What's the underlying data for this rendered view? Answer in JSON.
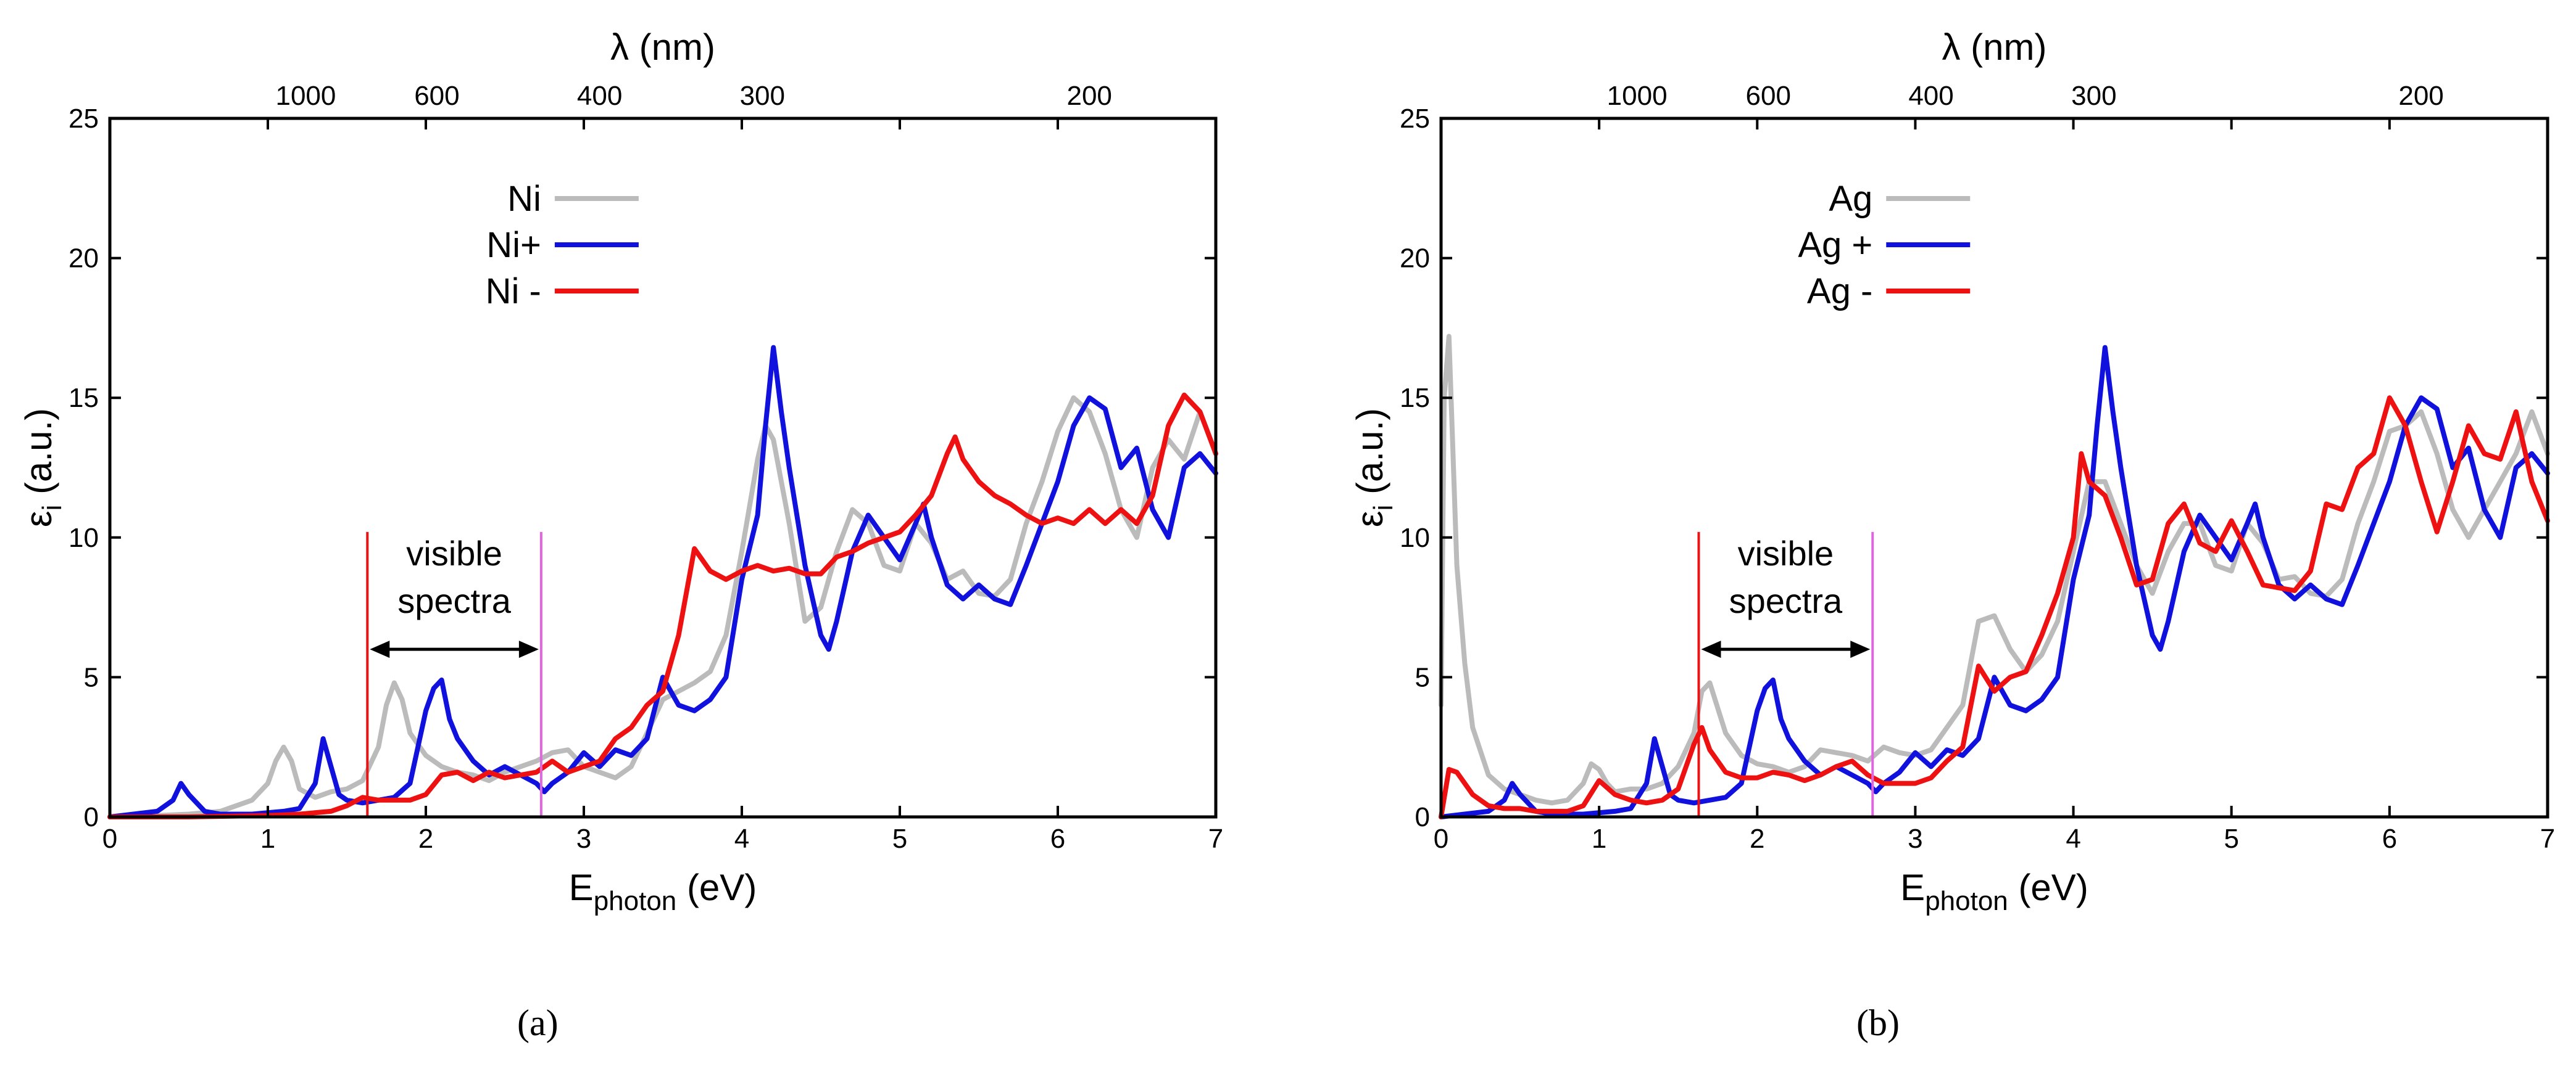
{
  "chart_data": [
    {
      "type": "line",
      "panel_label": "(a)",
      "xlabel": "E",
      "xlabel_sub": "photon",
      "xlabel_unit": " (eV)",
      "ylabel": "ε",
      "ylabel_sub": "i",
      "ylabel_unit": " (a.u.)",
      "top_axis_label": "λ (nm)",
      "xlim": [
        0,
        7
      ],
      "ylim": [
        0,
        25
      ],
      "x_ticks": [
        "0",
        "1",
        "2",
        "3",
        "4",
        "5",
        "6",
        "7"
      ],
      "y_ticks": [
        "0",
        "5",
        "10",
        "15",
        "20",
        "25"
      ],
      "top_ticks": [
        {
          "label": "1000",
          "ev": 1.24
        },
        {
          "label": "600",
          "ev": 2.07
        },
        {
          "label": "400",
          "ev": 3.1
        },
        {
          "label": "300",
          "ev": 4.13
        },
        {
          "label": "200",
          "ev": 6.2
        }
      ],
      "legend_position": "top-center",
      "visible_band": {
        "low_ev": 1.63,
        "high_ev": 2.73,
        "label_line1": "visible",
        "label_line2": "spectra",
        "arrow_y": 6.0,
        "line_top": 10.2,
        "low_color": "#ee1111",
        "high_color": "#e066e0"
      },
      "series": [
        {
          "name": "Ni",
          "color": "#bbbbbb",
          "x": [
            0,
            0.3,
            0.5,
            0.7,
            0.9,
            1.0,
            1.05,
            1.1,
            1.15,
            1.2,
            1.3,
            1.4,
            1.5,
            1.6,
            1.7,
            1.75,
            1.8,
            1.85,
            1.9,
            2.0,
            2.1,
            2.2,
            2.3,
            2.4,
            2.5,
            2.6,
            2.7,
            2.8,
            2.9,
            3.0,
            3.1,
            3.2,
            3.3,
            3.4,
            3.5,
            3.6,
            3.7,
            3.8,
            3.9,
            4.0,
            4.1,
            4.15,
            4.2,
            4.3,
            4.4,
            4.5,
            4.6,
            4.7,
            4.8,
            4.9,
            5.0,
            5.1,
            5.2,
            5.3,
            5.4,
            5.5,
            5.6,
            5.7,
            5.8,
            5.9,
            6.0,
            6.1,
            6.2,
            6.3,
            6.4,
            6.5,
            6.6,
            6.7,
            6.8,
            6.9,
            7.0
          ],
          "y": [
            0,
            0.05,
            0.1,
            0.2,
            0.6,
            1.2,
            2.0,
            2.5,
            2.0,
            1.0,
            0.7,
            0.9,
            1.0,
            1.3,
            2.5,
            4.0,
            4.8,
            4.2,
            3.0,
            2.2,
            1.8,
            1.6,
            1.5,
            1.3,
            1.6,
            1.8,
            2.0,
            2.3,
            2.4,
            1.8,
            1.6,
            1.4,
            1.8,
            3.0,
            4.2,
            4.5,
            4.8,
            5.2,
            6.5,
            9.5,
            12.8,
            14.0,
            13.5,
            10.5,
            7.0,
            7.5,
            9.5,
            11.0,
            10.5,
            9.0,
            8.8,
            10.5,
            9.8,
            8.5,
            8.8,
            8.0,
            7.9,
            8.5,
            10.5,
            12.0,
            13.8,
            15.0,
            14.5,
            13.0,
            11.0,
            10.0,
            12.5,
            13.5,
            12.8,
            14.5,
            13.0
          ]
        },
        {
          "name": "Ni+",
          "color": "#1111dd",
          "x": [
            0,
            0.3,
            0.4,
            0.45,
            0.5,
            0.6,
            0.7,
            0.9,
            1.1,
            1.2,
            1.3,
            1.35,
            1.4,
            1.45,
            1.5,
            1.6,
            1.7,
            1.8,
            1.9,
            1.95,
            2.0,
            2.05,
            2.1,
            2.15,
            2.2,
            2.3,
            2.4,
            2.5,
            2.6,
            2.7,
            2.75,
            2.8,
            2.9,
            3.0,
            3.1,
            3.2,
            3.3,
            3.4,
            3.5,
            3.6,
            3.7,
            3.8,
            3.9,
            4.0,
            4.1,
            4.15,
            4.2,
            4.25,
            4.3,
            4.4,
            4.5,
            4.55,
            4.6,
            4.7,
            4.8,
            4.9,
            5.0,
            5.1,
            5.15,
            5.2,
            5.3,
            5.4,
            5.5,
            5.6,
            5.7,
            5.8,
            5.9,
            6.0,
            6.1,
            6.2,
            6.3,
            6.4,
            6.5,
            6.6,
            6.7,
            6.8,
            6.9,
            7.0
          ],
          "y": [
            0,
            0.2,
            0.6,
            1.2,
            0.8,
            0.2,
            0.1,
            0.1,
            0.2,
            0.3,
            1.2,
            2.8,
            1.8,
            0.8,
            0.6,
            0.5,
            0.6,
            0.7,
            1.2,
            2.5,
            3.8,
            4.6,
            4.9,
            3.5,
            2.8,
            2.0,
            1.5,
            1.8,
            1.5,
            1.2,
            0.9,
            1.2,
            1.6,
            2.3,
            1.8,
            2.4,
            2.2,
            2.8,
            5.0,
            4.0,
            3.8,
            4.2,
            5.0,
            8.5,
            10.8,
            14.0,
            16.8,
            14.5,
            12.5,
            9.0,
            6.5,
            6.0,
            7.0,
            9.5,
            10.8,
            10.0,
            9.2,
            10.5,
            11.2,
            10.0,
            8.3,
            7.8,
            8.3,
            7.8,
            7.6,
            9.0,
            10.5,
            12.0,
            14.0,
            15.0,
            14.6,
            12.5,
            13.2,
            11.0,
            10.0,
            12.5,
            13.0,
            12.3
          ]
        },
        {
          "name": "Ni -",
          "color": "#ee1111",
          "x": [
            0,
            0.5,
            1.0,
            1.2,
            1.4,
            1.5,
            1.6,
            1.7,
            1.8,
            1.9,
            2.0,
            2.1,
            2.2,
            2.3,
            2.4,
            2.5,
            2.6,
            2.7,
            2.8,
            2.9,
            3.0,
            3.1,
            3.2,
            3.3,
            3.4,
            3.5,
            3.6,
            3.7,
            3.8,
            3.9,
            4.0,
            4.1,
            4.2,
            4.3,
            4.4,
            4.5,
            4.6,
            4.7,
            4.8,
            4.9,
            5.0,
            5.1,
            5.2,
            5.3,
            5.35,
            5.4,
            5.5,
            5.6,
            5.7,
            5.8,
            5.9,
            6.0,
            6.1,
            6.2,
            6.3,
            6.4,
            6.5,
            6.6,
            6.7,
            6.8,
            6.9,
            7.0
          ],
          "y": [
            0,
            0,
            0.05,
            0.1,
            0.2,
            0.4,
            0.7,
            0.6,
            0.6,
            0.6,
            0.8,
            1.5,
            1.6,
            1.3,
            1.6,
            1.4,
            1.5,
            1.6,
            2.0,
            1.6,
            1.8,
            2.0,
            2.8,
            3.2,
            4.0,
            4.5,
            6.5,
            9.6,
            8.8,
            8.5,
            8.8,
            9.0,
            8.8,
            8.9,
            8.7,
            8.7,
            9.3,
            9.5,
            9.8,
            10.0,
            10.2,
            10.8,
            11.5,
            13.0,
            13.6,
            12.8,
            12.0,
            11.5,
            11.2,
            10.8,
            10.5,
            10.7,
            10.5,
            11.0,
            10.5,
            11.0,
            10.5,
            11.5,
            14.0,
            15.1,
            14.5,
            13.0
          ]
        }
      ]
    },
    {
      "type": "line",
      "panel_label": "(b)",
      "xlabel": "E",
      "xlabel_sub": "photon",
      "xlabel_unit": " (eV)",
      "ylabel": "ε",
      "ylabel_sub": "i",
      "ylabel_unit": " (a.u.)",
      "top_axis_label": "λ (nm)",
      "xlim": [
        0,
        7
      ],
      "ylim": [
        0,
        25
      ],
      "x_ticks": [
        "0",
        "1",
        "2",
        "3",
        "4",
        "5",
        "6",
        "7"
      ],
      "y_ticks": [
        "0",
        "5",
        "10",
        "15",
        "20",
        "25"
      ],
      "top_ticks": [
        {
          "label": "1000",
          "ev": 1.24
        },
        {
          "label": "600",
          "ev": 2.07
        },
        {
          "label": "400",
          "ev": 3.1
        },
        {
          "label": "300",
          "ev": 4.13
        },
        {
          "label": "200",
          "ev": 6.2
        }
      ],
      "legend_position": "top-center",
      "visible_band": {
        "low_ev": 1.63,
        "high_ev": 2.73,
        "label_line1": "visible",
        "label_line2": "spectra",
        "arrow_y": 6.0,
        "line_top": 10.2,
        "low_color": "#ee1111",
        "high_color": "#e066e0"
      },
      "series": [
        {
          "name": "Ag",
          "color": "#bbbbbb",
          "x": [
            0,
            0.02,
            0.05,
            0.1,
            0.15,
            0.2,
            0.3,
            0.4,
            0.5,
            0.6,
            0.7,
            0.8,
            0.9,
            0.95,
            1.0,
            1.05,
            1.1,
            1.2,
            1.3,
            1.4,
            1.5,
            1.6,
            1.65,
            1.7,
            1.8,
            1.9,
            2.0,
            2.1,
            2.2,
            2.3,
            2.4,
            2.5,
            2.6,
            2.7,
            2.8,
            2.9,
            3.0,
            3.1,
            3.2,
            3.3,
            3.4,
            3.5,
            3.6,
            3.7,
            3.8,
            3.9,
            4.0,
            4.1,
            4.2,
            4.3,
            4.4,
            4.5,
            4.6,
            4.7,
            4.8,
            4.9,
            5.0,
            5.1,
            5.2,
            5.3,
            5.4,
            5.5,
            5.6,
            5.7,
            5.8,
            5.9,
            6.0,
            6.1,
            6.2,
            6.3,
            6.4,
            6.5,
            6.6,
            6.7,
            6.8,
            6.9,
            7.0
          ],
          "y": [
            4.0,
            15.0,
            17.2,
            9.0,
            5.5,
            3.2,
            1.5,
            1.0,
            0.8,
            0.6,
            0.5,
            0.6,
            1.2,
            1.9,
            1.7,
            1.2,
            0.9,
            1.0,
            1.0,
            1.2,
            1.8,
            3.0,
            4.5,
            4.8,
            3.0,
            2.2,
            1.9,
            1.8,
            1.6,
            1.8,
            2.4,
            2.3,
            2.2,
            2.0,
            2.5,
            2.3,
            2.2,
            2.4,
            3.2,
            4.0,
            7.0,
            7.2,
            6.0,
            5.2,
            5.8,
            7.0,
            9.5,
            12.0,
            12.0,
            10.5,
            9.0,
            8.0,
            9.5,
            10.5,
            10.5,
            9.0,
            8.8,
            10.5,
            9.8,
            8.5,
            8.6,
            8.0,
            7.9,
            8.5,
            10.5,
            12.0,
            13.8,
            14.0,
            14.5,
            13.0,
            11.0,
            10.0,
            11.0,
            12.0,
            13.0,
            14.5,
            13.0
          ]
        },
        {
          "name": "Ag +",
          "color": "#1111dd",
          "x": [
            0,
            0.3,
            0.4,
            0.45,
            0.5,
            0.6,
            0.7,
            0.9,
            1.1,
            1.2,
            1.3,
            1.35,
            1.4,
            1.45,
            1.5,
            1.6,
            1.7,
            1.8,
            1.9,
            1.95,
            2.0,
            2.05,
            2.1,
            2.15,
            2.2,
            2.3,
            2.4,
            2.5,
            2.6,
            2.7,
            2.75,
            2.8,
            2.9,
            3.0,
            3.1,
            3.2,
            3.3,
            3.4,
            3.5,
            3.6,
            3.7,
            3.8,
            3.9,
            4.0,
            4.1,
            4.15,
            4.2,
            4.25,
            4.3,
            4.4,
            4.5,
            4.55,
            4.6,
            4.7,
            4.8,
            4.9,
            5.0,
            5.1,
            5.15,
            5.2,
            5.3,
            5.4,
            5.5,
            5.6,
            5.7,
            5.8,
            5.9,
            6.0,
            6.1,
            6.2,
            6.3,
            6.4,
            6.5,
            6.6,
            6.7,
            6.8,
            6.9,
            7.0
          ],
          "y": [
            0,
            0.2,
            0.6,
            1.2,
            0.8,
            0.2,
            0.1,
            0.1,
            0.2,
            0.3,
            1.2,
            2.8,
            1.8,
            0.8,
            0.6,
            0.5,
            0.6,
            0.7,
            1.2,
            2.5,
            3.8,
            4.6,
            4.9,
            3.5,
            2.8,
            2.0,
            1.5,
            1.8,
            1.5,
            1.2,
            0.9,
            1.2,
            1.6,
            2.3,
            1.8,
            2.4,
            2.2,
            2.8,
            5.0,
            4.0,
            3.8,
            4.2,
            5.0,
            8.5,
            10.8,
            14.0,
            16.8,
            14.5,
            12.5,
            9.0,
            6.5,
            6.0,
            7.0,
            9.5,
            10.8,
            10.0,
            9.2,
            10.5,
            11.2,
            10.0,
            8.3,
            7.8,
            8.3,
            7.8,
            7.6,
            9.0,
            10.5,
            12.0,
            14.0,
            15.0,
            14.6,
            12.5,
            13.2,
            11.0,
            10.0,
            12.5,
            13.0,
            12.3
          ]
        },
        {
          "name": "Ag  -",
          "color": "#ee1111",
          "x": [
            0,
            0.05,
            0.1,
            0.15,
            0.2,
            0.3,
            0.4,
            0.5,
            0.6,
            0.7,
            0.8,
            0.9,
            1.0,
            1.1,
            1.2,
            1.3,
            1.4,
            1.5,
            1.55,
            1.6,
            1.65,
            1.7,
            1.8,
            1.9,
            2.0,
            2.1,
            2.2,
            2.3,
            2.4,
            2.5,
            2.6,
            2.7,
            2.8,
            2.9,
            3.0,
            3.1,
            3.2,
            3.3,
            3.4,
            3.5,
            3.6,
            3.7,
            3.8,
            3.9,
            4.0,
            4.05,
            4.1,
            4.2,
            4.3,
            4.4,
            4.5,
            4.6,
            4.7,
            4.8,
            4.9,
            5.0,
            5.1,
            5.2,
            5.3,
            5.4,
            5.5,
            5.6,
            5.7,
            5.8,
            5.9,
            6.0,
            6.1,
            6.2,
            6.3,
            6.4,
            6.5,
            6.6,
            6.7,
            6.8,
            6.9,
            7.0
          ],
          "y": [
            0,
            1.7,
            1.6,
            1.2,
            0.8,
            0.4,
            0.3,
            0.3,
            0.2,
            0.2,
            0.2,
            0.4,
            1.3,
            0.8,
            0.6,
            0.5,
            0.6,
            1.0,
            1.8,
            2.6,
            3.2,
            2.4,
            1.6,
            1.4,
            1.4,
            1.6,
            1.5,
            1.3,
            1.5,
            1.8,
            2.0,
            1.5,
            1.2,
            1.2,
            1.2,
            1.4,
            2.0,
            2.5,
            5.4,
            4.5,
            5.0,
            5.2,
            6.5,
            8.0,
            10.0,
            13.0,
            12.0,
            11.5,
            10.0,
            8.3,
            8.5,
            10.5,
            11.2,
            9.8,
            9.5,
            10.6,
            9.5,
            8.3,
            8.2,
            8.1,
            8.8,
            11.2,
            11.0,
            12.5,
            13.0,
            15.0,
            14.0,
            12.0,
            10.2,
            12.0,
            14.0,
            13.0,
            12.8,
            14.5,
            12.0,
            10.6
          ]
        }
      ]
    }
  ]
}
